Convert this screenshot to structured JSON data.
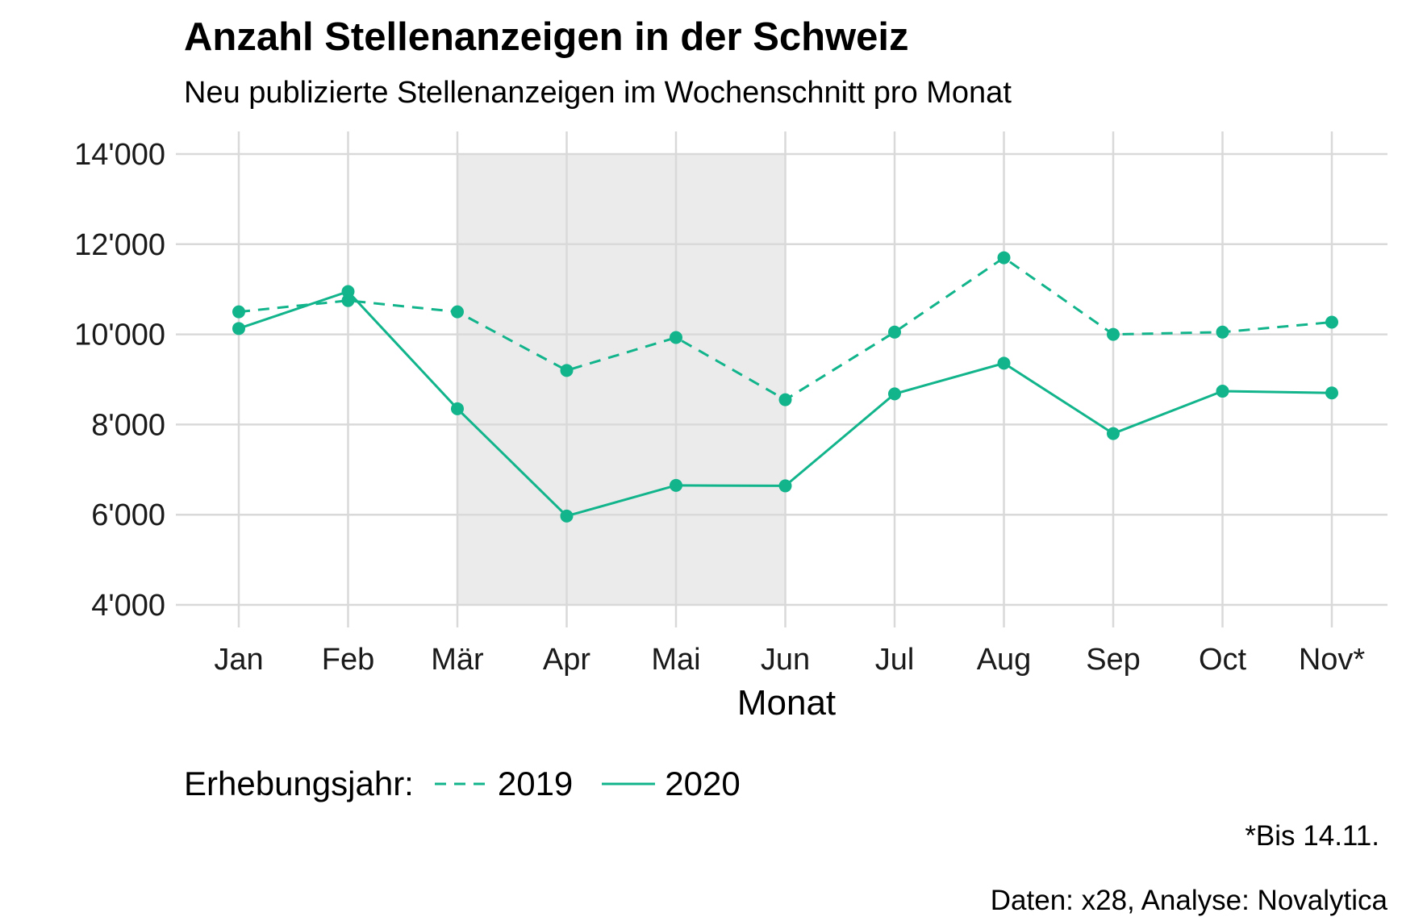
{
  "chart_data": {
    "type": "line",
    "title": "Anzahl Stellenanzeigen in der Schweiz",
    "subtitle": "Neu publizierte Stellenanzeigen im Wochenschnitt pro Monat",
    "xlabel": "Monat",
    "ylabel": "",
    "categories": [
      "Jan",
      "Feb",
      "Mär",
      "Apr",
      "Mai",
      "Jun",
      "Jul",
      "Aug",
      "Sep",
      "Oct",
      "Nov*"
    ],
    "ylim": [
      4000,
      14000
    ],
    "yticks": [
      4000,
      6000,
      8000,
      10000,
      12000,
      14000
    ],
    "ytick_labels": [
      "4'000",
      "6'000",
      "8'000",
      "10'000",
      "12'000",
      "14'000"
    ],
    "shaded_region": {
      "from": "Mär",
      "to": "Jun",
      "color": "#ebebeb"
    },
    "grid": true,
    "legend_position": "bottom",
    "legend_title": "Erhebungsjahr:",
    "series": [
      {
        "name": "2019",
        "style": "dashed",
        "color": "#12b48c",
        "values": [
          10500,
          10750,
          10500,
          9200,
          9930,
          8550,
          10050,
          11700,
          10000,
          10050,
          10270
        ]
      },
      {
        "name": "2020",
        "style": "solid",
        "color": "#12b48c",
        "values": [
          10130,
          10950,
          8350,
          5970,
          6650,
          6640,
          8680,
          9360,
          7800,
          8740,
          8700
        ]
      }
    ],
    "annotations": [
      "*Bis 14.11."
    ],
    "caption": "Daten: x28, Analyse: Novalytica"
  }
}
